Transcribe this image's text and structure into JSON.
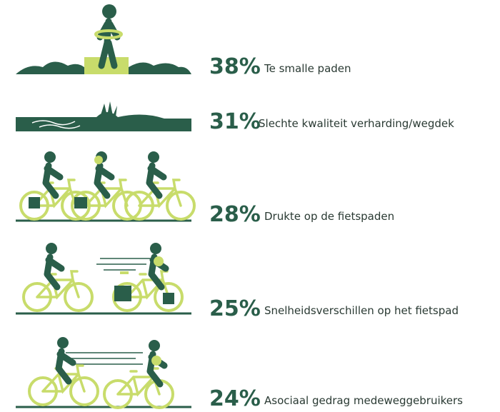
{
  "items": [
    {
      "percent": "38%",
      "label": "Te smalle paden"
    },
    {
      "percent": "31%",
      "label": "Slechte kwaliteit verharding/wegdek"
    },
    {
      "percent": "28%",
      "label": "Drukte op de fietspaden"
    },
    {
      "percent": "25%",
      "label": "Snelheidsverschillen op het fietspad"
    },
    {
      "percent": "24%",
      "label": "Asociaal gedrag medeweggebruikers"
    }
  ]
}
